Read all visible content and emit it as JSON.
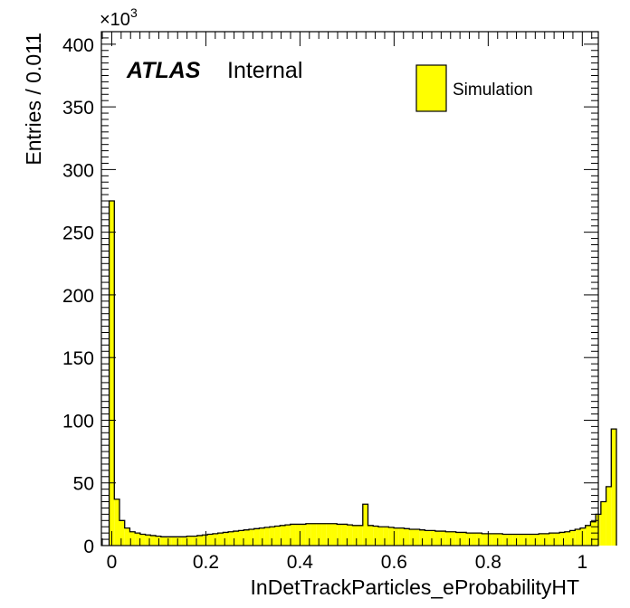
{
  "chart_data": {
    "type": "bar",
    "title": "",
    "xlabel": "InDetTrackParticles_eProbabilityHT",
    "ylabel": "Entries / 0.011",
    "y_multiplier": "×10",
    "y_multiplier_exp": "3",
    "bin_width": 0.011,
    "xlim": [
      -0.022,
      1.034
    ],
    "ylim": [
      0,
      410
    ],
    "x_ticks": [
      0,
      0.2,
      0.4,
      0.6,
      0.8,
      1
    ],
    "x_tick_labels": [
      "0",
      "0.2",
      "0.4",
      "0.6",
      "0.8",
      "1"
    ],
    "y_ticks": [
      0,
      50,
      100,
      150,
      200,
      250,
      300,
      350,
      400
    ],
    "y_tick_labels": [
      "0",
      "50",
      "100",
      "150",
      "200",
      "250",
      "300",
      "350",
      "400"
    ],
    "atlas_label": "ATLAS",
    "atlas_status": "Internal",
    "fill_color": "#ffff00",
    "line_color": "#000000",
    "legend": {
      "position": "top-right",
      "entries": [
        {
          "name": "Simulation",
          "color": "#ffff00"
        }
      ]
    },
    "series": [
      {
        "name": "Simulation",
        "bin_edges_start": -0.0055,
        "values": [
          275,
          37,
          20,
          14,
          11,
          10,
          9,
          8.5,
          8,
          7.5,
          7,
          7,
          7,
          7,
          7,
          7.5,
          7.5,
          8,
          8.5,
          9,
          9.5,
          10,
          10.5,
          11,
          11.5,
          12,
          12.5,
          13,
          13.5,
          14,
          14.5,
          15,
          15.5,
          16,
          16.5,
          17,
          17,
          17,
          17.5,
          17.5,
          17.5,
          17.5,
          17.5,
          17.5,
          17,
          17,
          16.5,
          16,
          16,
          33,
          16,
          15.5,
          15,
          15,
          14.5,
          14,
          14,
          13.5,
          13,
          13,
          12.5,
          12,
          12,
          11.5,
          11.5,
          11,
          11,
          10.5,
          10.5,
          10,
          10,
          10,
          9.5,
          9.5,
          9.5,
          9.5,
          9,
          9,
          9,
          9,
          9,
          9,
          9,
          9.5,
          9.5,
          10,
          10,
          10.5,
          11,
          12,
          13,
          14,
          16,
          19,
          25,
          35,
          47,
          93
        ]
      }
    ]
  }
}
